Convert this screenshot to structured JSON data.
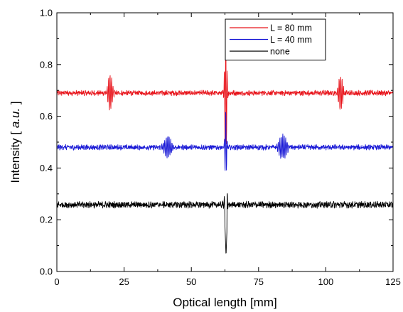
{
  "chart_data": {
    "type": "line",
    "title": "",
    "xlabel": "Optical length [mm]",
    "ylabel_parts": [
      "Intensity [ ",
      "a.u.",
      " ]"
    ],
    "xlim": [
      0,
      125
    ],
    "ylim": [
      0.0,
      1.0
    ],
    "xticks": [
      0,
      25,
      50,
      75,
      100,
      125
    ],
    "xtick_labels": [
      "0",
      "25",
      "50",
      "75",
      "100",
      "125"
    ],
    "yticks": [
      0.0,
      0.2,
      0.4,
      0.6,
      0.8,
      1.0
    ],
    "ytick_labels": [
      "0.0",
      "0.2",
      "0.4",
      "0.6",
      "0.8",
      "1.0"
    ],
    "grid": false,
    "legend_position": "top-right",
    "series": [
      {
        "name": "L = 80 mm",
        "color": "#e8141b",
        "baseline": 0.69,
        "noise": 0.008,
        "wavepackets": [
          {
            "center": 19.8,
            "amplitude": 0.075,
            "width": 0.7
          },
          {
            "center": 62.8,
            "amplitude": 0.27,
            "width": 0.35
          },
          {
            "center": 105.5,
            "amplitude": 0.075,
            "width": 0.7
          }
        ]
      },
      {
        "name": "L = 40 mm",
        "color": "#1a1ad6",
        "baseline": 0.48,
        "noise": 0.008,
        "wavepackets": [
          {
            "center": 41.2,
            "amplitude": 0.045,
            "width": 1.1
          },
          {
            "center": 62.8,
            "amplitude": 0.14,
            "width": 0.3
          },
          {
            "center": 84.0,
            "amplitude": 0.05,
            "width": 1.1
          }
        ]
      },
      {
        "name": "none",
        "color": "#000000",
        "baseline": 0.258,
        "noise": 0.01,
        "wavepackets": [
          {
            "center": 62.8,
            "amplitude": 0.07,
            "width": 0.5
          }
        ],
        "dip": {
          "center": 62.9,
          "min": 0.058
        }
      }
    ]
  }
}
